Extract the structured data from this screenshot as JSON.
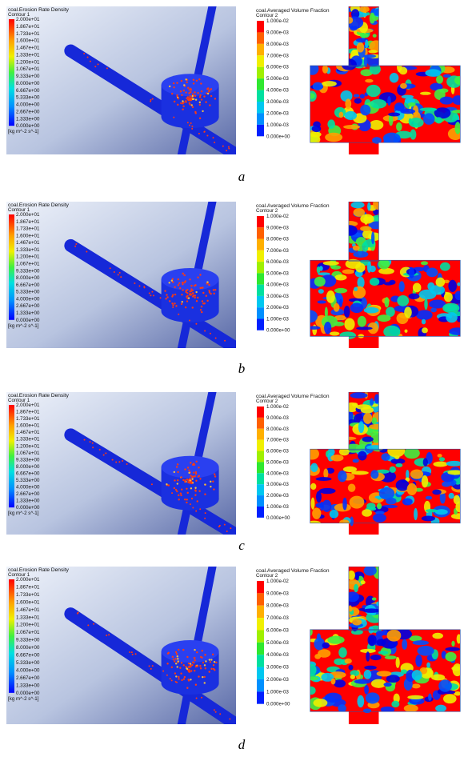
{
  "panels": [
    {
      "label": "a",
      "erosion": {
        "title": "coal.Erosion Rate Density",
        "subtitle": "Contour 1",
        "ticks": [
          "2.000e+01",
          "1.867e+01",
          "1.733e+01",
          "1.600e+01",
          "1.467e+01",
          "1.333e+01",
          "1.200e+01",
          "1.067e+01",
          "9.333e+00",
          "8.000e+00",
          "6.667e+00",
          "5.333e+00",
          "4.000e+00",
          "2.667e+00",
          "1.333e+00",
          "0.000e+00"
        ],
        "unit": "[kg m^-2 s^-1]"
      },
      "fraction": {
        "title": "coal.Averaged Volume Fraction",
        "subtitle": "Contour 2",
        "ticks": [
          "1.000e-02",
          "9.000e-03",
          "8.000e-03",
          "7.000e-03",
          "6.000e-03",
          "5.000e-03",
          "4.000e-03",
          "3.000e-03",
          "2.000e-03",
          "1.000e-03",
          "0.000e+00"
        ]
      }
    },
    {
      "label": "b",
      "erosion": {
        "title": "coal.Erosion Rate Density",
        "subtitle": "Contour 1",
        "ticks": [
          "2.000e+01",
          "1.867e+01",
          "1.733e+01",
          "1.600e+01",
          "1.467e+01",
          "1.333e+01",
          "1.200e+01",
          "1.067e+01",
          "9.333e+00",
          "8.000e+00",
          "6.667e+00",
          "5.333e+00",
          "4.000e+00",
          "2.667e+00",
          "1.333e+00",
          "0.000e+00"
        ],
        "unit": "[kg m^-2 s^-1]"
      },
      "fraction": {
        "title": "coal.Averaged Volume Fraction",
        "subtitle": "Contour 2",
        "ticks": [
          "1.000e-02",
          "9.000e-03",
          "8.000e-03",
          "7.000e-03",
          "6.000e-03",
          "5.000e-03",
          "4.000e-03",
          "3.000e-03",
          "2.000e-03",
          "1.000e-03",
          "0.000e+00"
        ]
      }
    },
    {
      "label": "c",
      "erosion": {
        "title": "coal.Erosion Rate Density",
        "subtitle": "Contour 1",
        "ticks": [
          "2.000e+01",
          "1.867e+01",
          "1.733e+01",
          "1.600e+01",
          "1.467e+01",
          "1.333e+01",
          "1.200e+01",
          "1.067e+01",
          "9.333e+00",
          "8.000e+00",
          "6.667e+00",
          "5.333e+00",
          "4.000e+00",
          "2.667e+00",
          "1.333e+00",
          "0.000e+00"
        ],
        "unit": "[kg m^-2 s^-1]"
      },
      "fraction": {
        "title": "coal.Averaged Volume Fraction",
        "subtitle": "Contour 2",
        "ticks": [
          "1.000e-02",
          "9.000e-03",
          "8.000e-03",
          "7.000e-03",
          "6.000e-03",
          "5.000e-03",
          "4.000e-03",
          "3.000e-03",
          "2.000e-03",
          "1.000e-03",
          "0.000e+00"
        ]
      }
    },
    {
      "label": "d",
      "erosion": {
        "title": "coal.Erosion Rate Density",
        "subtitle": "Contour 1",
        "ticks": [
          "2.000e+01",
          "1.867e+01",
          "1.733e+01",
          "1.600e+01",
          "1.467e+01",
          "1.333e+01",
          "1.200e+01",
          "1.067e+01",
          "9.333e+00",
          "8.000e+00",
          "6.667e+00",
          "5.333e+00",
          "4.000e+00",
          "2.667e+00",
          "1.333e+00",
          "0.000e+00"
        ],
        "unit": "[kg m^-2 s^-1]"
      },
      "fraction": {
        "title": "coal.Averaged Volume Fraction",
        "subtitle": "Contour 2",
        "ticks": [
          "1.000e-02",
          "9.000e-03",
          "8.000e-03",
          "7.000e-03",
          "6.000e-03",
          "5.000e-03",
          "4.000e-03",
          "3.000e-03",
          "2.000e-03",
          "1.000e-03",
          "0.000e+00"
        ]
      }
    }
  ]
}
